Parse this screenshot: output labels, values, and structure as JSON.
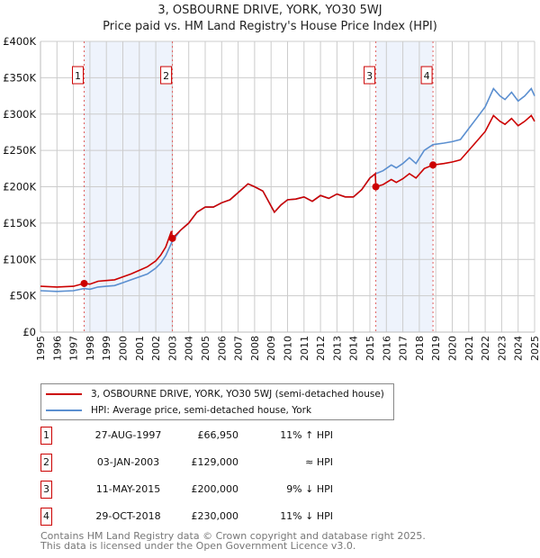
{
  "chart_data": {
    "type": "line",
    "title": "3, OSBOURNE DRIVE, YORK, YO30 5WJ",
    "subtitle": "Price paid vs. HM Land Registry's House Price Index (HPI)",
    "xlim": [
      1995,
      2025
    ],
    "ylim": [
      0,
      400000
    ],
    "x_ticks": [
      "1995",
      "1996",
      "1997",
      "1998",
      "1999",
      "2000",
      "2001",
      "2002",
      "2003",
      "2004",
      "2005",
      "2006",
      "2007",
      "2008",
      "2009",
      "2010",
      "2011",
      "2012",
      "2013",
      "2014",
      "2015",
      "2016",
      "2017",
      "2018",
      "2019",
      "2020",
      "2021",
      "2022",
      "2023",
      "2024",
      "2025"
    ],
    "y_ticks": [
      {
        "v": 0,
        "label": "£0"
      },
      {
        "v": 50000,
        "label": "£50K"
      },
      {
        "v": 100000,
        "label": "£100K"
      },
      {
        "v": 150000,
        "label": "£150K"
      },
      {
        "v": 200000,
        "label": "£200K"
      },
      {
        "v": 250000,
        "label": "£250K"
      },
      {
        "v": 300000,
        "label": "£300K"
      },
      {
        "v": 350000,
        "label": "£350K"
      },
      {
        "v": 400000,
        "label": "£400K"
      }
    ],
    "grid": true,
    "legend_placement": "below",
    "colors": {
      "price": "#cc0000",
      "hpi": "#5b8fd0",
      "shade": "#eef3fc"
    },
    "shaded_ranges": [
      [
        1997.65,
        2003.01
      ],
      [
        2015.36,
        2018.83
      ]
    ],
    "series": [
      {
        "name": "3, OSBOURNE DRIVE, YORK, YO30 5WJ (semi-detached house)",
        "key": "price",
        "points": [
          [
            1995,
            63
          ],
          [
            1996,
            62
          ],
          [
            1997,
            63
          ],
          [
            1997.65,
            66.95
          ],
          [
            1998,
            66
          ],
          [
            1998.5,
            70
          ],
          [
            1999,
            71
          ],
          [
            1999.5,
            72
          ],
          [
            2000,
            76
          ],
          [
            2000.5,
            80
          ],
          [
            2001,
            85
          ],
          [
            2001.5,
            90
          ],
          [
            2002,
            98
          ],
          [
            2002.3,
            106
          ],
          [
            2002.6,
            117
          ],
          [
            2002.95,
            139
          ],
          [
            2003.01,
            129
          ],
          [
            2003.5,
            140
          ],
          [
            2004,
            150
          ],
          [
            2004.5,
            165
          ],
          [
            2005,
            172
          ],
          [
            2005.5,
            172
          ],
          [
            2006,
            178
          ],
          [
            2006.5,
            182
          ],
          [
            2007,
            192
          ],
          [
            2007.6,
            204
          ],
          [
            2008,
            200
          ],
          [
            2008.5,
            194
          ],
          [
            2009.2,
            165
          ],
          [
            2009.6,
            175
          ],
          [
            2010,
            182
          ],
          [
            2010.5,
            183
          ],
          [
            2011,
            186
          ],
          [
            2011.5,
            180
          ],
          [
            2012,
            188
          ],
          [
            2012.5,
            184
          ],
          [
            2013,
            190
          ],
          [
            2013.5,
            186
          ],
          [
            2014,
            186
          ],
          [
            2014.5,
            196
          ],
          [
            2015,
            212
          ],
          [
            2015.33,
            218
          ],
          [
            2015.36,
            200
          ],
          [
            2015.8,
            203
          ],
          [
            2016.3,
            210
          ],
          [
            2016.6,
            206
          ],
          [
            2017,
            211
          ],
          [
            2017.4,
            218
          ],
          [
            2017.8,
            212
          ],
          [
            2018.3,
            225
          ],
          [
            2018.83,
            230
          ],
          [
            2019.5,
            232
          ],
          [
            2020,
            234
          ],
          [
            2020.5,
            237
          ],
          [
            2021,
            250
          ],
          [
            2021.5,
            263
          ],
          [
            2022,
            276
          ],
          [
            2022.5,
            298
          ],
          [
            2022.9,
            290
          ],
          [
            2023.2,
            286
          ],
          [
            2023.6,
            294
          ],
          [
            2024,
            284
          ],
          [
            2024.4,
            290
          ],
          [
            2024.8,
            298
          ],
          [
            2025,
            290
          ]
        ]
      },
      {
        "name": "HPI: Average price, semi-detached house, York",
        "key": "hpi",
        "points": [
          [
            1995,
            57
          ],
          [
            1996,
            56
          ],
          [
            1997,
            57
          ],
          [
            1997.65,
            60
          ],
          [
            1998,
            59
          ],
          [
            1998.5,
            62
          ],
          [
            1999,
            63
          ],
          [
            1999.5,
            64
          ],
          [
            2000,
            68
          ],
          [
            2000.5,
            72
          ],
          [
            2001,
            76
          ],
          [
            2001.5,
            80
          ],
          [
            2002,
            88
          ],
          [
            2002.3,
            95
          ],
          [
            2002.6,
            105
          ],
          [
            2003,
            125
          ],
          [
            2003.5,
            140
          ],
          [
            2004,
            150
          ],
          [
            2004.5,
            165
          ],
          [
            2005,
            172
          ],
          [
            2005.5,
            172
          ],
          [
            2006,
            178
          ],
          [
            2006.5,
            182
          ],
          [
            2007,
            192
          ],
          [
            2007.6,
            204
          ],
          [
            2008,
            200
          ],
          [
            2008.5,
            194
          ],
          [
            2009.2,
            165
          ],
          [
            2009.6,
            175
          ],
          [
            2010,
            182
          ],
          [
            2010.5,
            183
          ],
          [
            2011,
            186
          ],
          [
            2011.5,
            180
          ],
          [
            2012,
            188
          ],
          [
            2012.5,
            184
          ],
          [
            2013,
            190
          ],
          [
            2013.5,
            186
          ],
          [
            2014,
            186
          ],
          [
            2014.5,
            196
          ],
          [
            2015,
            212
          ],
          [
            2015.36,
            218
          ],
          [
            2015.8,
            222
          ],
          [
            2016.3,
            230
          ],
          [
            2016.6,
            226
          ],
          [
            2017,
            232
          ],
          [
            2017.4,
            240
          ],
          [
            2017.8,
            232
          ],
          [
            2018.3,
            250
          ],
          [
            2018.83,
            258
          ],
          [
            2019.5,
            260
          ],
          [
            2020,
            262
          ],
          [
            2020.5,
            265
          ],
          [
            2021,
            280
          ],
          [
            2021.5,
            295
          ],
          [
            2022,
            310
          ],
          [
            2022.5,
            335
          ],
          [
            2022.9,
            325
          ],
          [
            2023.2,
            320
          ],
          [
            2023.6,
            330
          ],
          [
            2024,
            318
          ],
          [
            2024.4,
            325
          ],
          [
            2024.8,
            335
          ],
          [
            2025,
            325
          ]
        ]
      }
    ],
    "sales": [
      {
        "n": "1",
        "x": 1997.65,
        "date": "27-AUG-1997",
        "value": 66950,
        "price": "£66,950",
        "hpi": "11% ↑ HPI"
      },
      {
        "n": "2",
        "x": 2003.01,
        "date": "03-JAN-2003",
        "value": 129000,
        "price": "£129,000",
        "hpi": "≈ HPI"
      },
      {
        "n": "3",
        "x": 2015.36,
        "date": "11-MAY-2015",
        "value": 200000,
        "price": "£200,000",
        "hpi": "9% ↓ HPI"
      },
      {
        "n": "4",
        "x": 2018.83,
        "date": "29-OCT-2018",
        "value": 230000,
        "price": "£230,000",
        "hpi": "11% ↓ HPI"
      }
    ]
  },
  "footer": {
    "line1": "Contains HM Land Registry data © Crown copyright and database right 2025.",
    "line2": "This data is licensed under the Open Government Licence v3.0."
  }
}
